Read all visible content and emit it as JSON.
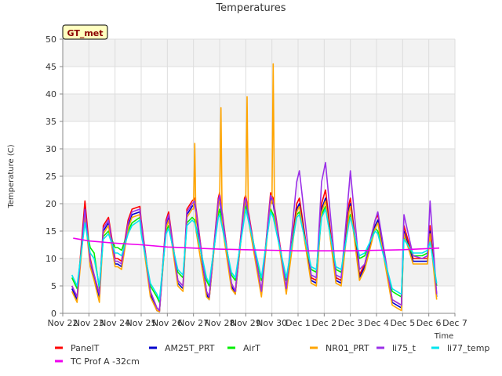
{
  "chart_data": {
    "type": "line",
    "title": "Temperatures",
    "xlabel": "Time",
    "ylabel": "Temperature (C)",
    "badge": "GT_met",
    "xlim": [
      0,
      15
    ],
    "ylim": [
      0,
      50
    ],
    "x_ticks": [
      {
        "v": 0,
        "label": "Nov 22"
      },
      {
        "v": 1,
        "label": "Nov 23"
      },
      {
        "v": 2,
        "label": "Nov 24"
      },
      {
        "v": 3,
        "label": "Nov 25"
      },
      {
        "v": 4,
        "label": "Nov 26"
      },
      {
        "v": 5,
        "label": "Nov 27"
      },
      {
        "v": 6,
        "label": "Nov 28"
      },
      {
        "v": 7,
        "label": "Nov 29"
      },
      {
        "v": 8,
        "label": "Nov 30"
      },
      {
        "v": 9,
        "label": "Dec 1"
      },
      {
        "v": 10,
        "label": "Dec 2"
      },
      {
        "v": 11,
        "label": "Dec 3"
      },
      {
        "v": 12,
        "label": "Dec 4"
      },
      {
        "v": 13,
        "label": "Dec 5"
      },
      {
        "v": 14,
        "label": "Dec 6"
      },
      {
        "v": 15,
        "label": "Dec 7"
      }
    ],
    "y_ticks": [
      0,
      5,
      10,
      15,
      20,
      25,
      30,
      35,
      40,
      45,
      50
    ],
    "grid": true,
    "legend_position": "bottom",
    "series": [
      {
        "name": "PanelT",
        "color": "#ff0000",
        "x": [
          0.35,
          0.55,
          0.85,
          1.05,
          1.2,
          1.4,
          1.55,
          1.75,
          2.0,
          2.1,
          2.25,
          2.5,
          2.65,
          2.95,
          3.0,
          3.35,
          3.6,
          3.7,
          3.95,
          4.05,
          4.4,
          4.6,
          4.75,
          4.95,
          5.05,
          5.5,
          5.6,
          5.95,
          6.0,
          6.45,
          6.6,
          6.95,
          7.0,
          7.6,
          7.95,
          8.05,
          8.55,
          8.95,
          9.05,
          9.5,
          9.7,
          9.9,
          10.05,
          10.45,
          10.65,
          10.95,
          11.0,
          11.35,
          11.55,
          11.95,
          12.05,
          12.6,
          12.95,
          13.05,
          13.4,
          13.75,
          13.95,
          14.05,
          14.3
        ],
        "y": [
          5,
          3,
          20.5,
          10,
          7,
          3.5,
          16,
          17.5,
          10,
          10,
          9.5,
          17,
          19,
          19.5,
          17,
          4,
          1,
          0.5,
          17,
          18.5,
          6,
          5,
          19,
          20.5,
          21,
          4,
          3,
          21,
          22,
          5.5,
          4,
          21,
          21.5,
          4,
          22,
          21,
          4.5,
          20,
          21,
          6.5,
          6,
          20,
          22.5,
          6.5,
          6,
          20,
          21,
          7,
          9,
          17,
          18,
          2.5,
          1.5,
          16,
          10,
          10,
          10,
          16,
          3.5
        ]
      },
      {
        "name": "AM25T_PRT",
        "color": "#0000cc",
        "x": [
          0.35,
          0.55,
          0.85,
          1.05,
          1.2,
          1.4,
          1.55,
          1.75,
          2.0,
          2.1,
          2.25,
          2.5,
          2.65,
          2.95,
          3.0,
          3.35,
          3.6,
          3.7,
          3.95,
          4.05,
          4.4,
          4.6,
          4.75,
          4.95,
          5.05,
          5.5,
          5.6,
          5.95,
          6.0,
          6.45,
          6.6,
          6.95,
          7.0,
          7.6,
          7.95,
          8.05,
          8.55,
          8.95,
          9.05,
          9.5,
          9.7,
          9.9,
          10.05,
          10.45,
          10.65,
          10.95,
          11.0,
          11.35,
          11.55,
          11.95,
          12.05,
          12.6,
          12.95,
          13.05,
          13.4,
          13.75,
          13.95,
          14.05,
          14.3
        ],
        "y": [
          4.5,
          2.5,
          19,
          9,
          6.5,
          3,
          15,
          16.5,
          9,
          9,
          8.5,
          16,
          18,
          18.5,
          16,
          3.5,
          0.5,
          0.3,
          16,
          17.5,
          5.5,
          4.5,
          18,
          19.5,
          20,
          3.5,
          2.5,
          20,
          21,
          5,
          3.5,
          20,
          20.5,
          3.5,
          21,
          20,
          4,
          19,
          20,
          6,
          5.5,
          19,
          21,
          6,
          5.5,
          19,
          20,
          6.5,
          8.5,
          16,
          17,
          2,
          1,
          15,
          9.5,
          9.5,
          9.5,
          15,
          3
        ]
      },
      {
        "name": "AirT",
        "color": "#00ee00",
        "x": [
          0.35,
          0.55,
          0.85,
          1.05,
          1.2,
          1.4,
          1.55,
          1.75,
          2.0,
          2.1,
          2.25,
          2.5,
          2.65,
          2.95,
          3.0,
          3.35,
          3.6,
          3.7,
          3.95,
          4.05,
          4.4,
          4.6,
          4.75,
          4.95,
          5.05,
          5.5,
          5.6,
          5.95,
          6.0,
          6.45,
          6.6,
          6.95,
          7.0,
          7.6,
          7.95,
          8.05,
          8.55,
          8.95,
          9.05,
          9.5,
          9.7,
          9.9,
          10.05,
          10.45,
          10.65,
          10.95,
          11.0,
          11.35,
          11.55,
          11.95,
          12.05,
          12.6,
          12.95,
          13.05,
          13.4,
          13.75,
          13.95,
          14.05,
          14.3
        ],
        "y": [
          6.5,
          4.5,
          17,
          12,
          11,
          4.5,
          14,
          15,
          12,
          12,
          11.5,
          15,
          16.5,
          17.5,
          15,
          5,
          3,
          2,
          15,
          16,
          7.5,
          6.5,
          16.5,
          17.5,
          17,
          6,
          5,
          18,
          19,
          7,
          6,
          18,
          19.5,
          6,
          19,
          18,
          6,
          18,
          18.5,
          8,
          7.5,
          18,
          19.5,
          8,
          7.5,
          17,
          18,
          10,
          10.5,
          15.5,
          15,
          4,
          3,
          14,
          10.5,
          10.5,
          11,
          13.5,
          5
        ]
      },
      {
        "name": "NR01_PRT",
        "color": "#ffa500",
        "x": [
          0.35,
          0.55,
          0.85,
          1.05,
          1.2,
          1.4,
          1.55,
          1.75,
          2.0,
          2.1,
          2.25,
          2.5,
          2.65,
          2.95,
          3.0,
          3.35,
          3.6,
          3.7,
          3.95,
          4.05,
          4.4,
          4.6,
          4.75,
          4.95,
          5.0,
          5.05,
          5.1,
          5.5,
          5.6,
          5.95,
          6.0,
          6.05,
          6.1,
          6.45,
          6.6,
          6.95,
          7.0,
          7.05,
          7.1,
          7.6,
          7.95,
          8.0,
          8.05,
          8.1,
          8.55,
          8.95,
          9.05,
          9.5,
          9.7,
          9.9,
          10.05,
          10.45,
          10.65,
          10.95,
          11.0,
          11.35,
          11.55,
          11.95,
          12.05,
          12.6,
          12.95,
          13.05,
          13.4,
          13.75,
          13.95,
          14.05,
          14.3
        ],
        "y": [
          4,
          2,
          18,
          8.5,
          6,
          2,
          14.5,
          16,
          8.5,
          8.5,
          8,
          15.5,
          17.5,
          18,
          15.5,
          3,
          0.5,
          0.3,
          15.5,
          17,
          5,
          4,
          17.5,
          19,
          19,
          31,
          15,
          3,
          2.5,
          19.5,
          20.5,
          37.5,
          16,
          4.5,
          3.5,
          19.5,
          20,
          39.5,
          17,
          3,
          20.5,
          20,
          45.5,
          18,
          3.5,
          18.5,
          19.5,
          5.5,
          5,
          18.5,
          20.5,
          5.5,
          5,
          18.5,
          19.5,
          6,
          8,
          15.5,
          16.5,
          1.5,
          0.5,
          14.5,
          9,
          9,
          9,
          14.5,
          2.5
        ]
      },
      {
        "name": "li75_t",
        "color": "#9b30e8",
        "x": [
          0.35,
          0.55,
          0.85,
          1.05,
          1.2,
          1.4,
          1.55,
          1.75,
          2.0,
          2.1,
          2.25,
          2.5,
          2.65,
          2.95,
          3.0,
          3.35,
          3.6,
          3.7,
          3.95,
          4.05,
          4.4,
          4.6,
          4.75,
          4.95,
          5.05,
          5.5,
          5.6,
          5.95,
          6.0,
          6.45,
          6.6,
          6.95,
          7.0,
          7.6,
          7.95,
          8.05,
          8.55,
          8.95,
          9.05,
          9.5,
          9.7,
          9.9,
          10.05,
          10.45,
          10.65,
          10.95,
          11.0,
          11.35,
          11.55,
          11.95,
          12.05,
          12.6,
          12.95,
          13.05,
          13.4,
          13.75,
          13.95,
          14.05,
          14.3
        ],
        "y": [
          5,
          3,
          19,
          9.5,
          7,
          3.5,
          15.5,
          17,
          9.5,
          9.5,
          9,
          16.5,
          18.5,
          19,
          16.5,
          4,
          1,
          0.5,
          16.5,
          18,
          6,
          5,
          18.5,
          20,
          20.5,
          4,
          3,
          20.5,
          21.5,
          5.5,
          4,
          20.5,
          21,
          4,
          21.5,
          20.5,
          4.5,
          24,
          26,
          7,
          6.5,
          24,
          27.5,
          7,
          6.5,
          23,
          26,
          8,
          9,
          17,
          18.5,
          2.5,
          1.5,
          18,
          10.5,
          10,
          10.5,
          20.5,
          3.5
        ]
      },
      {
        "name": "li77_temp",
        "color": "#00e5ee",
        "x": [
          0.35,
          0.55,
          0.85,
          1.05,
          1.2,
          1.4,
          1.55,
          1.75,
          2.0,
          2.1,
          2.25,
          2.5,
          2.65,
          2.95,
          3.0,
          3.35,
          3.6,
          3.7,
          3.95,
          4.05,
          4.4,
          4.6,
          4.75,
          4.95,
          5.05,
          5.5,
          5.6,
          5.95,
          6.0,
          6.45,
          6.6,
          6.95,
          7.0,
          7.6,
          7.95,
          8.05,
          8.55,
          8.95,
          9.05,
          9.5,
          9.7,
          9.9,
          10.05,
          10.45,
          10.65,
          10.95,
          11.0,
          11.35,
          11.55,
          11.95,
          12.05,
          12.6,
          12.95,
          13.05,
          13.4,
          13.75,
          13.95,
          14.05,
          14.3
        ],
        "y": [
          7,
          5,
          16.5,
          11,
          10,
          5,
          13.5,
          14.5,
          11,
          11,
          10.5,
          14.5,
          16,
          17,
          14.5,
          5.5,
          3.5,
          2.5,
          14.5,
          15.5,
          8,
          7,
          16,
          17,
          16.5,
          6.5,
          5.5,
          17.5,
          18,
          7.5,
          6.5,
          17.5,
          19,
          6.5,
          18.5,
          17.5,
          6.5,
          17.5,
          18,
          8.5,
          8,
          17.5,
          19,
          8.5,
          8,
          16.5,
          17.5,
          10.5,
          11,
          15,
          14.5,
          4.5,
          3.5,
          13.5,
          11,
          11,
          11.5,
          13,
          5.5
        ]
      },
      {
        "name": "TC Prof A -32cm",
        "color": "#ee00ee",
        "x": [
          0.4,
          1,
          2,
          3,
          4,
          5,
          6,
          7,
          8,
          9,
          10,
          11,
          12,
          13,
          14.4
        ],
        "y": [
          13.7,
          13.2,
          12.8,
          12.5,
          12.1,
          11.9,
          11.7,
          11.6,
          11.5,
          11.4,
          11.4,
          11.4,
          11.5,
          11.6,
          11.9
        ]
      }
    ]
  }
}
